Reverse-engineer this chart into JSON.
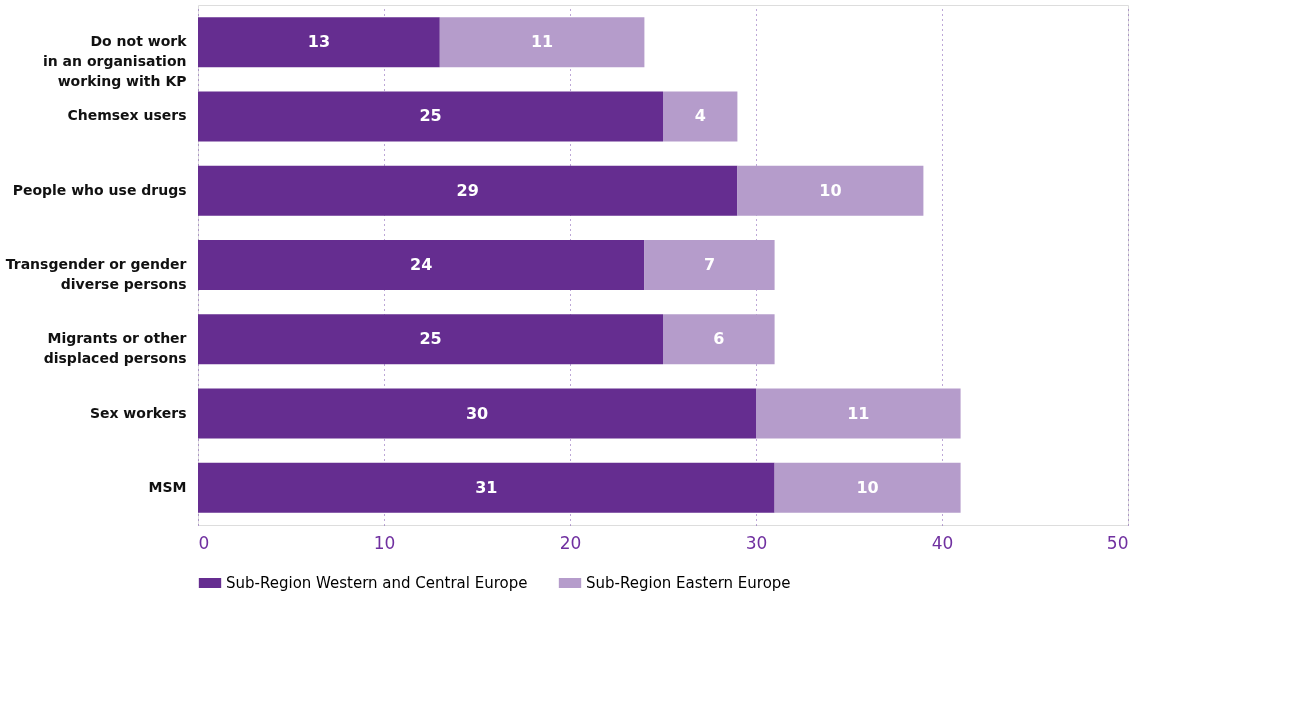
{
  "chart_data": {
    "type": "bar",
    "orientation": "horizontal",
    "stacked": true,
    "data_labels": true,
    "categories": [
      "Do not work\nin an organisation\nworking with KP",
      "Chemsex users",
      "People who use drugs",
      "Transgender or gender\ndiverse persons",
      "Migrants or other\ndisplaced persons",
      "Sex workers",
      "MSM"
    ],
    "series": [
      {
        "name": "Sub-Region Western and Central Europe",
        "color": "#652d90",
        "values": [
          13,
          25,
          29,
          24,
          25,
          30,
          31
        ]
      },
      {
        "name": "Sub-Region Eastern Europe",
        "color": "#b59ccb",
        "values": [
          11,
          4,
          10,
          7,
          6,
          11,
          10
        ]
      }
    ],
    "xlim": [
      0,
      50
    ],
    "xticks": [
      0,
      10,
      20,
      30,
      40,
      50
    ],
    "grid": "x",
    "legend": "bottom"
  }
}
